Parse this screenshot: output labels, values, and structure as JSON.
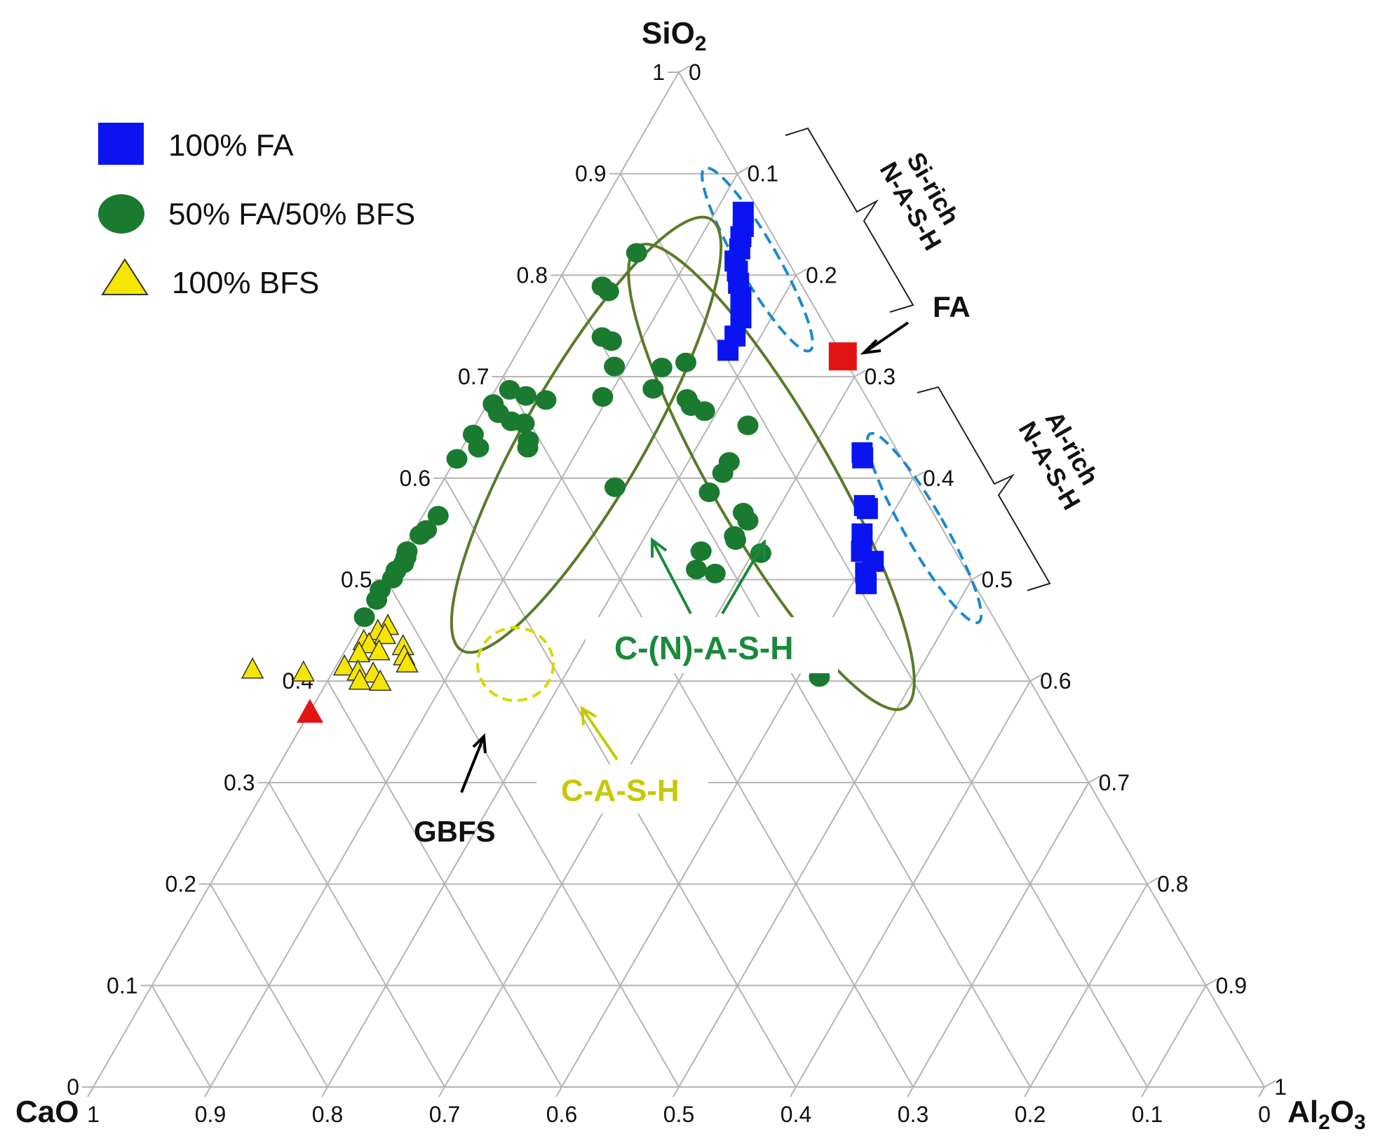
{
  "chart_data": {
    "type": "ternary-scatter",
    "vertices": {
      "top": "SiO",
      "left": "CaO",
      "right": "Al",
      "top_sub": "2",
      "right_sub1": "2",
      "right_rest": "O",
      "right_sub2": "3"
    },
    "axis_ticks": [
      0,
      0.1,
      0.2,
      0.3,
      0.4,
      0.5,
      0.6,
      0.7,
      0.8,
      0.9,
      1
    ],
    "left_edge_tick_labels": [
      "0",
      "0.1",
      "0.2",
      "0.3",
      "0.4",
      "0.5",
      "0.6",
      "0.7",
      "0.8",
      "0.9",
      "1"
    ],
    "right_edge_tick_labels": [
      "0",
      "0.1",
      "0.2",
      "0.3",
      "0.4",
      "0.5",
      "0.6",
      "0.7",
      "0.8",
      "0.9",
      "1"
    ],
    "bottom_edge_tick_labels": [
      "1",
      "0.9",
      "0.8",
      "0.7",
      "0.6",
      "0.5",
      "0.4",
      "0.3",
      "0.2",
      "0.1",
      "0"
    ],
    "legend": [
      {
        "label": "100% FA",
        "marker": "square",
        "color": "#0a14f0"
      },
      {
        "label": "50% FA/50% BFS",
        "marker": "circle",
        "color": "#1a7a30"
      },
      {
        "label": "100% BFS",
        "marker": "triangle",
        "color": "#f5e600"
      }
    ],
    "series": [
      {
        "name": "100% FA",
        "points_sio2_al2o3": [
          [
            0.862,
            0.124
          ],
          [
            0.848,
            0.131
          ],
          [
            0.838,
            0.134
          ],
          [
            0.826,
            0.139
          ],
          [
            0.814,
            0.141
          ],
          [
            0.804,
            0.148
          ],
          [
            0.792,
            0.155
          ],
          [
            0.778,
            0.164
          ],
          [
            0.758,
            0.174
          ],
          [
            0.74,
            0.178
          ],
          [
            0.726,
            0.179
          ],
          [
            0.625,
            0.344
          ],
          [
            0.62,
            0.347
          ],
          [
            0.573,
            0.372
          ],
          [
            0.57,
            0.376
          ],
          [
            0.545,
            0.384
          ],
          [
            0.528,
            0.392
          ],
          [
            0.518,
            0.407
          ],
          [
            0.507,
            0.406
          ],
          [
            0.496,
            0.412
          ]
        ]
      },
      {
        "name": "50% FA/50% BFS",
        "points_sio2_al2o3": [
          [
            0.822,
            0.053
          ],
          [
            0.789,
            0.04
          ],
          [
            0.784,
            0.048
          ],
          [
            0.739,
            0.065
          ],
          [
            0.735,
            0.075
          ],
          [
            0.714,
            0.149
          ],
          [
            0.71,
            0.09
          ],
          [
            0.709,
            0.131
          ],
          [
            0.688,
            0.134
          ],
          [
            0.678,
            0.168
          ],
          [
            0.671,
            0.175
          ],
          [
            0.666,
            0.189
          ],
          [
            0.652,
            0.233
          ],
          [
            0.673,
            0.005
          ],
          [
            0.681,
            0.029
          ],
          [
            0.687,
            0.012
          ],
          [
            0.677,
            0.048
          ],
          [
            0.68,
            0.095
          ],
          [
            0.643,
            0.003
          ],
          [
            0.664,
            0.014
          ],
          [
            0.656,
            0.029
          ],
          [
            0.654,
            0.041
          ],
          [
            0.637,
            0.053
          ],
          [
            0.619,
            0.001
          ],
          [
            0.63,
            0.014
          ],
          [
            0.63,
            0.056
          ],
          [
            0.616,
            0.235
          ],
          [
            0.605,
            0.235
          ],
          [
            0.591,
            0.15
          ],
          [
            0.586,
            0.233
          ],
          [
            0.566,
            0.272
          ],
          [
            0.558,
            0.28
          ],
          [
            0.543,
            0.276
          ],
          [
            0.539,
            0.279
          ],
          [
            0.528,
            0.255
          ],
          [
            0.526,
            0.307
          ],
          [
            0.51,
            0.26
          ],
          [
            0.506,
            0.278
          ],
          [
            0.453,
            0.374
          ],
          [
            0.404,
            0.418
          ],
          [
            0.563,
            0.013
          ],
          [
            0.549,
            0.01
          ],
          [
            0.544,
            0.007
          ],
          [
            0.528,
            0.004
          ],
          [
            0.522,
            0.006
          ],
          [
            0.516,
            0.007
          ],
          [
            0.509,
            0.004
          ],
          [
            0.501,
            0.005
          ],
          [
            0.49,
            0.0
          ],
          [
            0.48,
            0.002
          ],
          [
            0.463,
            0.0
          ]
        ]
      },
      {
        "name": "100% BFS",
        "points_sio2_al2o3": [
          [
            0.455,
            0.024
          ],
          [
            0.45,
            0.018
          ],
          [
            0.446,
            0.026
          ],
          [
            0.44,
            0.011
          ],
          [
            0.437,
            0.017
          ],
          [
            0.435,
            0.047
          ],
          [
            0.43,
            0.029
          ],
          [
            0.428,
            0.013
          ],
          [
            0.425,
            0.053
          ],
          [
            0.418,
            0.059
          ],
          [
            0.415,
            0.007
          ],
          [
            0.41,
            0.021
          ],
          [
            0.408,
            0.035
          ],
          [
            0.401,
            0.027
          ],
          [
            0.4,
            0.045
          ],
          [
            0.412,
            -0.07
          ],
          [
            0.409,
            -0.025
          ]
        ]
      }
    ],
    "reference_points": [
      {
        "label": "FA",
        "marker": "square",
        "color": "#e41414",
        "sio2": 0.72,
        "al2o3": 0.28
      },
      {
        "label": "GBFS",
        "marker": "triangle",
        "color": "#e41414",
        "sio2": 0.37,
        "al2o3": 0.0
      }
    ],
    "annotations": {
      "fa": "FA",
      "gbfs": "GBFS",
      "cash": "C-A-S-H",
      "cnash": "C-(N)-A-S-H",
      "si_rich_1": "Si-rich",
      "si_rich_2": "N-A-S-H",
      "al_rich_1": "Al-rich",
      "al_rich_2": "N-A-S-H"
    },
    "colors": {
      "grid": "#b4b4b4",
      "fa_series": "#0a14f0",
      "blend_series": "#1a7a30",
      "bfs_series": "#f5e600",
      "reference": "#e41414",
      "cnash_ellipse": "#5a7a2a",
      "nash_ellipse": "#1a8ad0",
      "cash_color": "#c8c800",
      "cnash_text": "#1a8a3a"
    }
  }
}
